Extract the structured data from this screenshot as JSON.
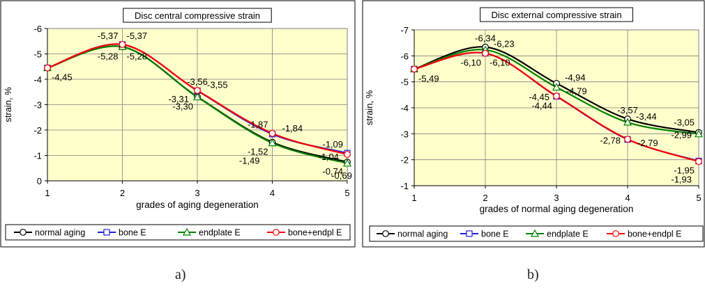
{
  "chart_data": [
    {
      "type": "line",
      "title": "Disc central compressive strain",
      "xlabel": "grades of aging degeneration",
      "ylabel": "strain, %",
      "x": [
        1,
        2,
        3,
        4,
        5
      ],
      "xlim": [
        1,
        5
      ],
      "ylim": [
        0,
        -6
      ],
      "yticks": [
        0,
        -1,
        -2,
        -3,
        -4,
        -5,
        -6
      ],
      "grid": true,
      "legend_placement": "bottom",
      "series": [
        {
          "name": "normal aging",
          "values": [
            -4.45,
            -5.28,
            -3.31,
            -1.52,
            -0.74
          ],
          "color": "#000000",
          "marker": "circle"
        },
        {
          "name": "bone E",
          "values": [
            -4.45,
            -5.37,
            -3.55,
            -1.84,
            -1.09
          ],
          "color": "#1f1fe0",
          "marker": "square"
        },
        {
          "name": "endplate E",
          "values": [
            -4.45,
            -5.28,
            -3.3,
            -1.49,
            -0.69
          ],
          "color": "#008000",
          "marker": "triangle"
        },
        {
          "name": "bone+endpl E",
          "values": [
            -4.45,
            -5.37,
            -3.56,
            -1.87,
            -1.04
          ],
          "color": "#ff0000",
          "marker": "circle"
        }
      ],
      "annotations": [
        {
          "text": "-4,45",
          "x": 1,
          "y": -4.45,
          "pos": "below-right"
        },
        {
          "text": "-5,37",
          "x": 2,
          "y": -5.37,
          "pos": "above-left"
        },
        {
          "text": "-5,37",
          "x": 2,
          "y": -5.37,
          "pos": "above-right"
        },
        {
          "text": "-5,28",
          "x": 2,
          "y": -5.28,
          "pos": "below-left"
        },
        {
          "text": "-5,28",
          "x": 2,
          "y": -5.28,
          "pos": "below-right"
        },
        {
          "text": "-3,56",
          "x": 3,
          "y": -3.56,
          "pos": "above"
        },
        {
          "text": "-3,55",
          "x": 3,
          "y": -3.55,
          "pos": "right"
        },
        {
          "text": "-3,31",
          "x": 3,
          "y": -3.31,
          "pos": "left"
        },
        {
          "text": "-3,30",
          "x": 3,
          "y": -3.3,
          "pos": "below-left"
        },
        {
          "text": "-1,87",
          "x": 4,
          "y": -1.87,
          "pos": "above-left"
        },
        {
          "text": "-1,84",
          "x": 4,
          "y": -1.84,
          "pos": "right"
        },
        {
          "text": "-1,52",
          "x": 4,
          "y": -1.52,
          "pos": "below-left"
        },
        {
          "text": "-1,49",
          "x": 4,
          "y": -1.49,
          "pos": "below-left-2"
        },
        {
          "text": "-1,09",
          "x": 5,
          "y": -1.09,
          "pos": "above-left"
        },
        {
          "text": "-1,04",
          "x": 5,
          "y": -1.04,
          "pos": "left"
        },
        {
          "text": "-0,74",
          "x": 5,
          "y": -0.74,
          "pos": "below-left"
        },
        {
          "text": "-0,69",
          "x": 5,
          "y": -0.69,
          "pos": "below"
        }
      ]
    },
    {
      "type": "line",
      "title": "Disc external compressive strain",
      "xlabel": "grades of normal aging degeneration",
      "ylabel": "strain, %",
      "x": [
        1,
        2,
        3,
        4,
        5
      ],
      "xlim": [
        1,
        5
      ],
      "ylim": [
        -1,
        -7
      ],
      "yticks": [
        -1,
        -2,
        -3,
        -4,
        -5,
        -6,
        -7
      ],
      "grid": true,
      "legend_placement": "bottom",
      "series": [
        {
          "name": "normal aging",
          "values": [
            -5.49,
            -6.34,
            -4.94,
            -3.57,
            -3.05
          ],
          "color": "#000000",
          "marker": "circle"
        },
        {
          "name": "bone E",
          "values": [
            -5.49,
            -6.1,
            -4.44,
            -2.78,
            -1.95
          ],
          "color": "#1f1fe0",
          "marker": "square"
        },
        {
          "name": "endplate E",
          "values": [
            -5.49,
            -6.23,
            -4.79,
            -3.44,
            -2.99
          ],
          "color": "#008000",
          "marker": "triangle"
        },
        {
          "name": "bone+endpl E",
          "values": [
            -5.49,
            -6.1,
            -4.45,
            -2.79,
            -1.93
          ],
          "color": "#ff0000",
          "marker": "circle"
        }
      ],
      "annotations": [
        {
          "text": "-5,49",
          "x": 1,
          "y": -5.49,
          "pos": "below-right"
        },
        {
          "text": "-6,34",
          "x": 2,
          "y": -6.34,
          "pos": "above"
        },
        {
          "text": "-6,23",
          "x": 2,
          "y": -6.23,
          "pos": "right"
        },
        {
          "text": "-6,10",
          "x": 2,
          "y": -6.1,
          "pos": "below-left"
        },
        {
          "text": "-6,10",
          "x": 2,
          "y": -6.1,
          "pos": "below-right"
        },
        {
          "text": "-4,94",
          "x": 3,
          "y": -4.94,
          "pos": "right"
        },
        {
          "text": "-4,79",
          "x": 3,
          "y": -4.79,
          "pos": "right-2"
        },
        {
          "text": "-4,45",
          "x": 3,
          "y": -4.45,
          "pos": "left"
        },
        {
          "text": "-4,44",
          "x": 3,
          "y": -4.44,
          "pos": "below-left"
        },
        {
          "text": "-3,57",
          "x": 4,
          "y": -3.57,
          "pos": "above"
        },
        {
          "text": "-3,44",
          "x": 4,
          "y": -3.44,
          "pos": "right"
        },
        {
          "text": "-2,79",
          "x": 4,
          "y": -2.79,
          "pos": "right-2"
        },
        {
          "text": "-2,78",
          "x": 4,
          "y": -2.78,
          "pos": "left"
        },
        {
          "text": "-3,05",
          "x": 5,
          "y": -3.05,
          "pos": "above-left"
        },
        {
          "text": "-2,99",
          "x": 5,
          "y": -2.99,
          "pos": "left"
        },
        {
          "text": "-1,95",
          "x": 5,
          "y": -1.95,
          "pos": "below-left"
        },
        {
          "text": "-1,93",
          "x": 5,
          "y": -1.93,
          "pos": "below-left-2"
        }
      ]
    }
  ],
  "captions": {
    "a": "a)",
    "b": "b)"
  }
}
